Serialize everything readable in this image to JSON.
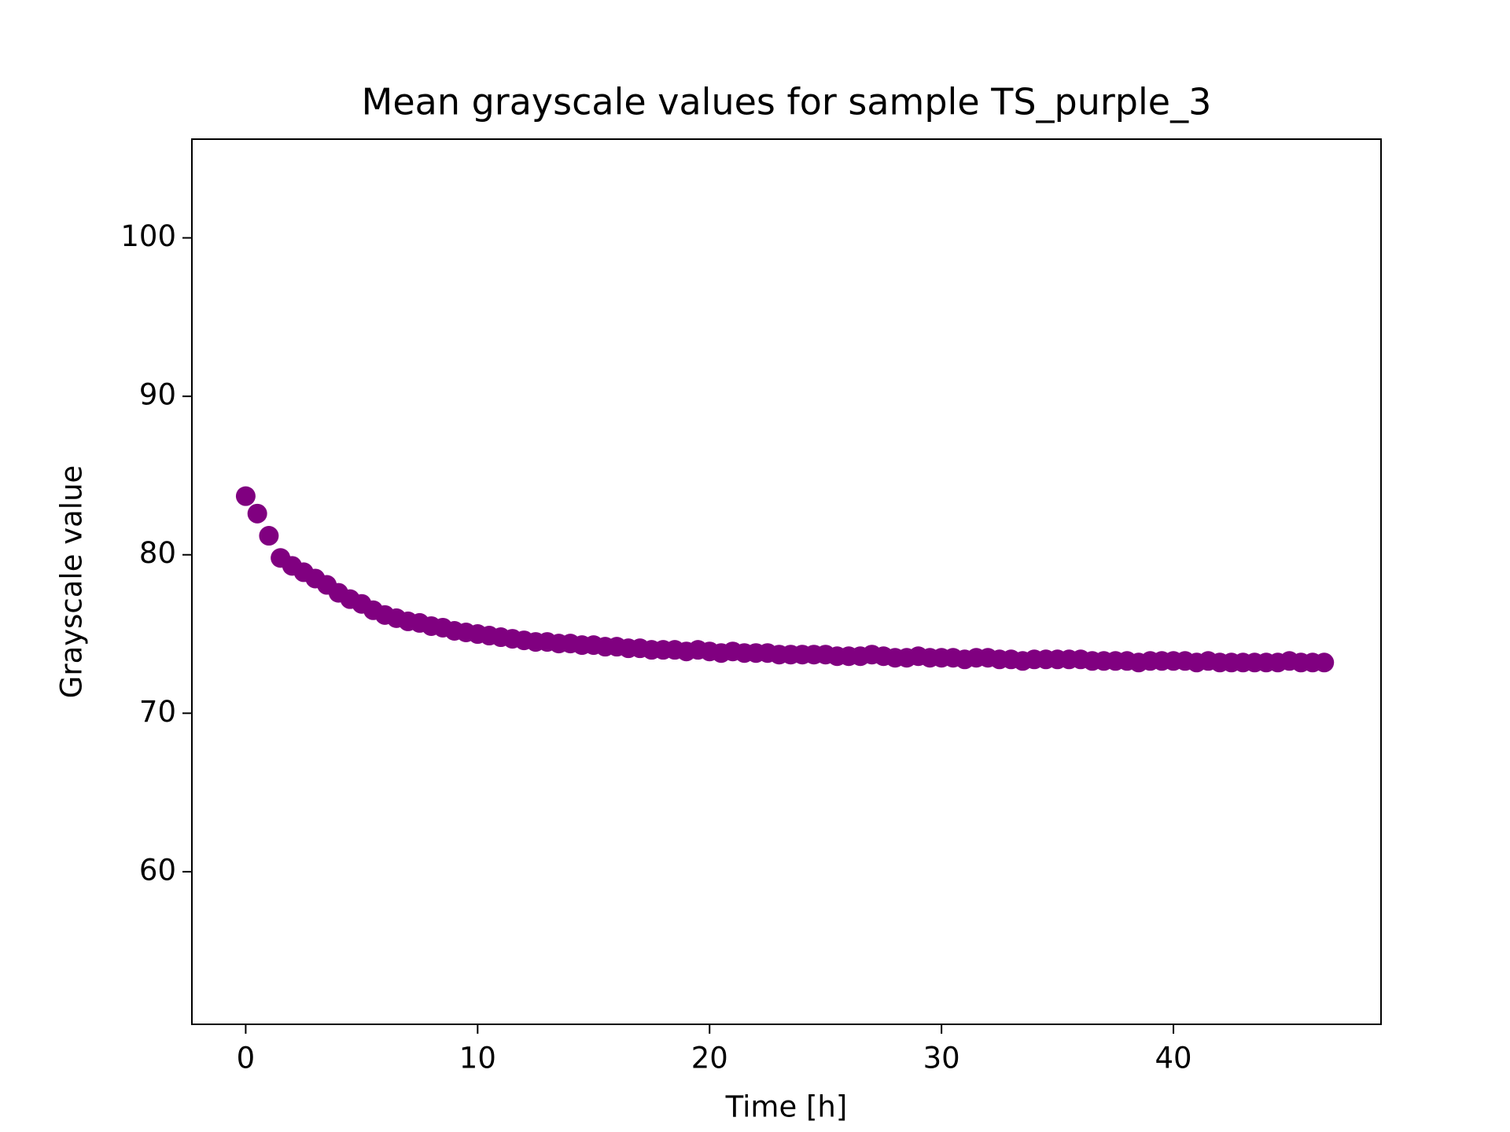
{
  "chart_data": {
    "type": "scatter",
    "title": "Mean grayscale values for sample TS_purple_3",
    "xlabel": "Time [h]",
    "ylabel": "Grayscale value",
    "xlim": [
      -2.32,
      48.95
    ],
    "ylim": [
      50.37,
      106.23
    ],
    "xticks": [
      0,
      10,
      20,
      30,
      40
    ],
    "yticks": [
      60,
      70,
      80,
      90,
      100
    ],
    "grid": false,
    "series": [
      {
        "name": "TS_purple_3",
        "color": "#800080",
        "x": [
          0,
          0.5,
          1,
          1.5,
          2,
          2.5,
          3,
          3.5,
          4,
          4.5,
          5,
          5.5,
          6,
          6.5,
          7,
          7.5,
          8,
          8.5,
          9,
          9.5,
          10,
          10.5,
          11,
          11.5,
          12,
          12.5,
          13,
          13.5,
          14,
          14.5,
          15,
          15.5,
          16,
          16.5,
          17,
          17.5,
          18,
          18.5,
          19,
          19.5,
          20,
          20.5,
          21,
          21.5,
          22,
          22.5,
          23,
          23.5,
          24,
          24.5,
          25,
          25.5,
          26,
          26.5,
          27,
          27.5,
          28,
          28.5,
          29,
          29.5,
          30,
          30.5,
          31,
          31.5,
          32,
          32.5,
          33,
          33.5,
          34,
          34.5,
          35,
          35.5,
          36,
          36.5,
          37,
          37.5,
          38,
          38.5,
          39,
          39.5,
          40,
          40.5,
          41,
          41.5,
          42,
          42.5,
          43,
          43.5,
          44,
          44.5,
          45,
          45.5,
          46,
          46.5
        ],
        "values": [
          83.7,
          82.6,
          81.2,
          79.8,
          79.3,
          78.9,
          78.5,
          78.1,
          77.6,
          77.2,
          76.9,
          76.5,
          76.2,
          76.0,
          75.8,
          75.7,
          75.5,
          75.4,
          75.2,
          75.1,
          75.0,
          74.9,
          74.8,
          74.7,
          74.6,
          74.5,
          74.5,
          74.4,
          74.4,
          74.3,
          74.3,
          74.2,
          74.2,
          74.1,
          74.1,
          74.0,
          74.0,
          74.0,
          73.9,
          74.0,
          73.9,
          73.8,
          73.9,
          73.8,
          73.8,
          73.8,
          73.7,
          73.7,
          73.7,
          73.7,
          73.7,
          73.6,
          73.6,
          73.6,
          73.7,
          73.6,
          73.5,
          73.5,
          73.6,
          73.5,
          73.5,
          73.5,
          73.4,
          73.5,
          73.5,
          73.4,
          73.4,
          73.3,
          73.4,
          73.4,
          73.4,
          73.4,
          73.4,
          73.3,
          73.3,
          73.3,
          73.3,
          73.2,
          73.3,
          73.3,
          73.3,
          73.3,
          73.2,
          73.3,
          73.2,
          73.2,
          73.2,
          73.2,
          73.2,
          73.2,
          73.3,
          73.2,
          73.2,
          73.2
        ]
      }
    ]
  }
}
